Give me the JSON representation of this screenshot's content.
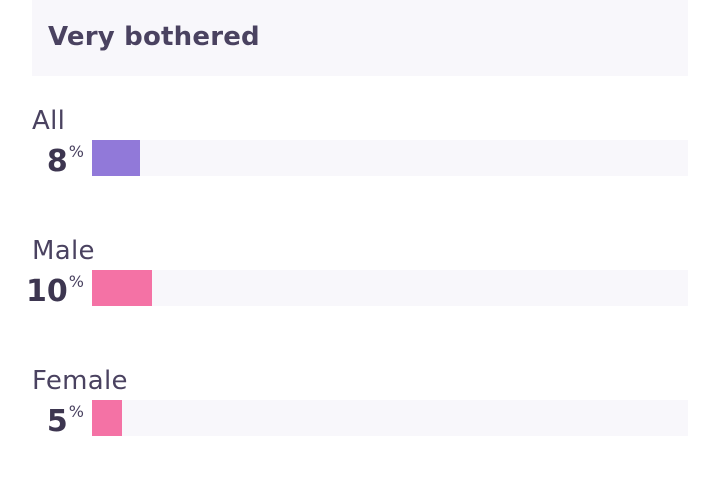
{
  "chart_data": {
    "type": "bar",
    "title": "Very bothered",
    "categories": [
      "All",
      "Male",
      "Female"
    ],
    "values": [
      8,
      10,
      5
    ],
    "unit": "%",
    "xlim": [
      0,
      100
    ],
    "colors": [
      "#9179d9",
      "#f472a5",
      "#f472a5"
    ]
  }
}
